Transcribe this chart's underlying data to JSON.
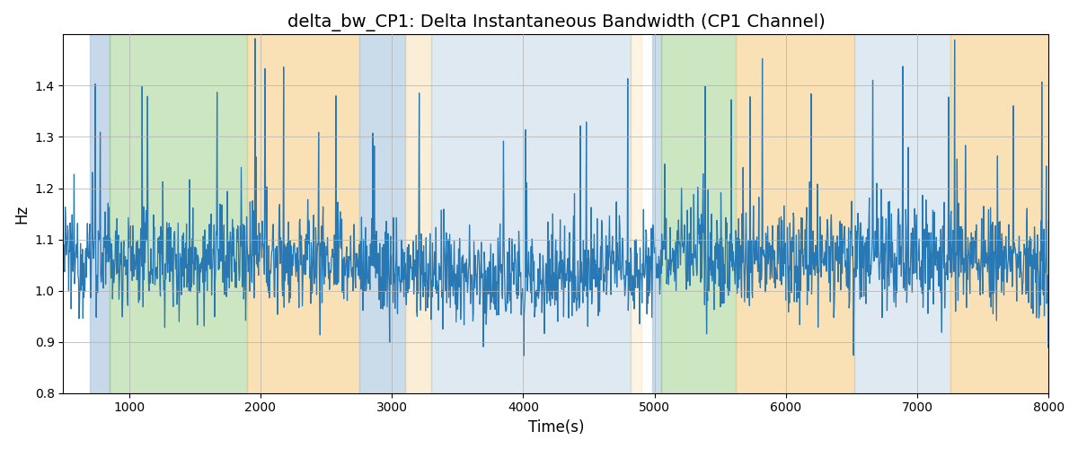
{
  "title": "delta_bw_CP1: Delta Instantaneous Bandwidth (CP1 Channel)",
  "xlabel": "Time(s)",
  "ylabel": "Hz",
  "xlim": [
    500,
    8000
  ],
  "ylim": [
    0.8,
    1.5
  ],
  "line_color": "#2878b4",
  "line_width": 0.9,
  "bg_bands": [
    {
      "xmin": 700,
      "xmax": 850,
      "color": "#aec8e0",
      "alpha": 0.7
    },
    {
      "xmin": 850,
      "xmax": 1900,
      "color": "#90c878",
      "alpha": 0.45
    },
    {
      "xmin": 1900,
      "xmax": 2750,
      "color": "#f5c878",
      "alpha": 0.55
    },
    {
      "xmin": 2750,
      "xmax": 3100,
      "color": "#aec8e0",
      "alpha": 0.65
    },
    {
      "xmin": 3100,
      "xmax": 3300,
      "color": "#f5c878",
      "alpha": 0.3
    },
    {
      "xmin": 3300,
      "xmax": 4820,
      "color": "#aec8e0",
      "alpha": 0.4
    },
    {
      "xmin": 4820,
      "xmax": 4900,
      "color": "#f5c878",
      "alpha": 0.2
    },
    {
      "xmin": 4980,
      "xmax": 5050,
      "color": "#aec8e0",
      "alpha": 0.65
    },
    {
      "xmin": 5050,
      "xmax": 5620,
      "color": "#90c878",
      "alpha": 0.45
    },
    {
      "xmin": 5620,
      "xmax": 6520,
      "color": "#f5c878",
      "alpha": 0.55
    },
    {
      "xmin": 6520,
      "xmax": 7250,
      "color": "#aec8e0",
      "alpha": 0.4
    },
    {
      "xmin": 7250,
      "xmax": 8050,
      "color": "#f5c878",
      "alpha": 0.55
    }
  ],
  "xticks": [
    1000,
    2000,
    3000,
    4000,
    5000,
    6000,
    7000,
    8000
  ],
  "yticks": [
    0.8,
    0.9,
    1.0,
    1.1,
    1.2,
    1.3,
    1.4
  ],
  "grid_color": "#b0b0b0",
  "title_fontsize": 14
}
